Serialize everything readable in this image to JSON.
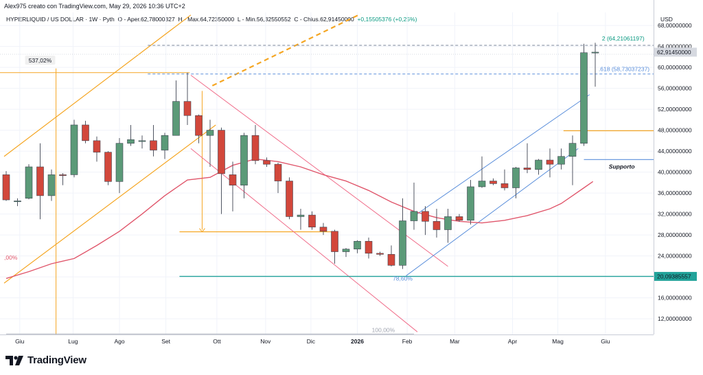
{
  "header": {
    "caption": "Alex975 creato con TradingView.com, May 29, 2026 10:36 UTC+2",
    "legend": {
      "symbol": "HYPERLIQUID / US DOLLAR · 1W · Pyth",
      "o": "O - Aper.62,78000327",
      "h": "H - Max.64,72350000",
      "l": "L - Min.56,32550552",
      "c": "C - Chius.62,91450000",
      "change": "+0,15505376 (+0,25%)"
    }
  },
  "brand": {
    "name": "TradingView",
    "icon": "tradingview-logo-icon"
  },
  "colors": {
    "up": "#5b9a78",
    "down": "#d2473b",
    "ma": "#e0566b",
    "channel_orange": "#f5a623",
    "channel_pink": "#f06d8a",
    "channel_blue": "#5b8fdb",
    "support_teal": "#22a39a"
  },
  "chart_data": {
    "type": "candlestick",
    "currency_label": "USD",
    "ylim": [
      9,
      70.5
    ],
    "y_ticks": [
      12,
      16,
      20,
      24,
      28,
      32,
      36,
      40,
      44,
      48,
      52,
      56,
      60,
      64,
      68
    ],
    "y_tick_labels": [
      "12,00000000",
      "16,00000000",
      "20,00000000",
      "24,00000000",
      "28,00000000",
      "32,00000000",
      "36,00000000",
      "40,00000000",
      "44,00000000",
      "48,00000000",
      "52,00000000",
      "56,00000000",
      "60,00000000",
      "64,00000000",
      "68,00000000"
    ],
    "x_labels": [
      "Giu",
      "Lug",
      "Ago",
      "Set",
      "Ott",
      "Nov",
      "Dic",
      "2026",
      "Feb",
      "Mar",
      "Apr",
      "Mag",
      "Giu"
    ],
    "x_label_index": [
      1.2,
      5.9,
      10.0,
      14.1,
      18.6,
      22.9,
      26.9,
      31.0,
      35.4,
      39.6,
      44.7,
      48.7,
      52.9
    ],
    "candles": [
      [
        39.5,
        40.2,
        34.5,
        34.7
      ],
      [
        34.5,
        35.0,
        33.5,
        34.5
      ],
      [
        35.0,
        41.5,
        34.8,
        41.0
      ],
      [
        41.0,
        45.5,
        31.0,
        35.5
      ],
      [
        35.5,
        40.5,
        34.5,
        39.5
      ],
      [
        39.5,
        39.8,
        37.5,
        39.4
      ],
      [
        39.5,
        50.0,
        39.0,
        49.0
      ],
      [
        49.0,
        49.8,
        45.5,
        46.0
      ],
      [
        46.0,
        46.8,
        42.0,
        43.8
      ],
      [
        43.8,
        44.0,
        37.5,
        38.2
      ],
      [
        38.2,
        46.5,
        36.0,
        45.5
      ],
      [
        45.5,
        49.0,
        45.0,
        46.2
      ],
      [
        46.0,
        47.0,
        44.5,
        46.0
      ],
      [
        46.0,
        49.0,
        43.0,
        44.2
      ],
      [
        44.2,
        47.5,
        42.5,
        47.0
      ],
      [
        47.0,
        57.5,
        47.0,
        53.5
      ],
      [
        53.5,
        59.0,
        49.0,
        50.8
      ],
      [
        50.8,
        51.0,
        45.5,
        47.0
      ],
      [
        47.0,
        50.0,
        41.0,
        48.0
      ],
      [
        48.0,
        48.5,
        32.0,
        39.7
      ],
      [
        39.5,
        42.0,
        32.5,
        37.5
      ],
      [
        37.5,
        47.5,
        35.0,
        47.0
      ],
      [
        47.0,
        49.0,
        41.5,
        42.2
      ],
      [
        42.2,
        42.8,
        41.0,
        41.5
      ],
      [
        41.5,
        41.8,
        36.0,
        38.3
      ],
      [
        38.3,
        39.0,
        31.0,
        31.5
      ],
      [
        31.5,
        33.0,
        29.0,
        31.8
      ],
      [
        31.8,
        32.5,
        29.0,
        29.5
      ],
      [
        29.5,
        30.3,
        28.0,
        28.7
      ],
      [
        28.7,
        29.0,
        22.5,
        24.8
      ],
      [
        24.8,
        25.5,
        23.8,
        25.3
      ],
      [
        25.3,
        27.0,
        24.5,
        26.8
      ],
      [
        26.8,
        27.5,
        23.5,
        24.5
      ],
      [
        24.5,
        24.8,
        24.0,
        24.3
      ],
      [
        24.3,
        26.0,
        22.0,
        22.2
      ],
      [
        22.2,
        35.0,
        21.5,
        30.7
      ],
      [
        30.7,
        38.0,
        29.0,
        32.5
      ],
      [
        32.5,
        33.5,
        28.0,
        30.6
      ],
      [
        30.6,
        33.0,
        27.5,
        29.0
      ],
      [
        29.0,
        33.0,
        26.5,
        31.5
      ],
      [
        31.5,
        32.0,
        30.5,
        30.8
      ],
      [
        30.8,
        38.5,
        30.0,
        37.2
      ],
      [
        37.2,
        43.0,
        37.0,
        38.3
      ],
      [
        38.3,
        38.8,
        37.5,
        37.8
      ],
      [
        37.8,
        40.5,
        36.5,
        37.0
      ],
      [
        37.0,
        41.0,
        35.0,
        40.8
      ],
      [
        40.8,
        45.5,
        39.8,
        40.5
      ],
      [
        40.5,
        42.5,
        39.5,
        42.3
      ],
      [
        42.3,
        44.5,
        39.0,
        41.5
      ],
      [
        41.5,
        44.5,
        40.5,
        43.0
      ],
      [
        43.0,
        47.0,
        37.5,
        45.5
      ],
      [
        45.5,
        64.5,
        45.0,
        62.8
      ],
      [
        62.8,
        64.7,
        56.3,
        62.9
      ]
    ],
    "ma": [
      [
        0,
        19.7
      ],
      [
        2,
        21.0
      ],
      [
        4,
        22.5
      ],
      [
        6,
        23.5
      ],
      [
        8,
        26.0
      ],
      [
        10,
        28.7
      ],
      [
        12,
        32.0
      ],
      [
        14,
        35.5
      ],
      [
        16,
        38.5
      ],
      [
        18,
        39.0
      ],
      [
        20,
        41.3
      ],
      [
        22,
        42.5
      ],
      [
        24,
        42.0
      ],
      [
        26,
        41.0
      ],
      [
        28,
        39.5
      ],
      [
        30,
        38.3
      ],
      [
        32,
        36.5
      ],
      [
        34,
        34.3
      ],
      [
        36,
        32.5
      ],
      [
        38,
        31.3
      ],
      [
        40,
        30.6
      ],
      [
        42,
        30.3
      ],
      [
        44,
        30.8
      ],
      [
        46,
        31.7
      ],
      [
        48,
        33.0
      ],
      [
        49,
        34.0
      ],
      [
        50,
        35.5
      ],
      [
        51,
        37.0
      ],
      [
        51.8,
        38.2
      ]
    ],
    "ma_label": ",00%",
    "annotations": {
      "range_pct": "537,02%",
      "fib_top": "2 (64,21061197)",
      "fib_mid": ".618 (58,73037237)",
      "fib_low_pct": "78,60%",
      "fib_bottom_pct": "100,00%",
      "support_label": "Supporto",
      "last_price": "62,91450000",
      "support_price": "20,09385557"
    },
    "levels": {
      "fib_top": 64.21,
      "fib_mid": 58.73,
      "range_top": 59.0,
      "support": 20.09,
      "orange_h1": 47.9,
      "orange_h2": 28.6,
      "resistance_blue": 42.4
    }
  }
}
